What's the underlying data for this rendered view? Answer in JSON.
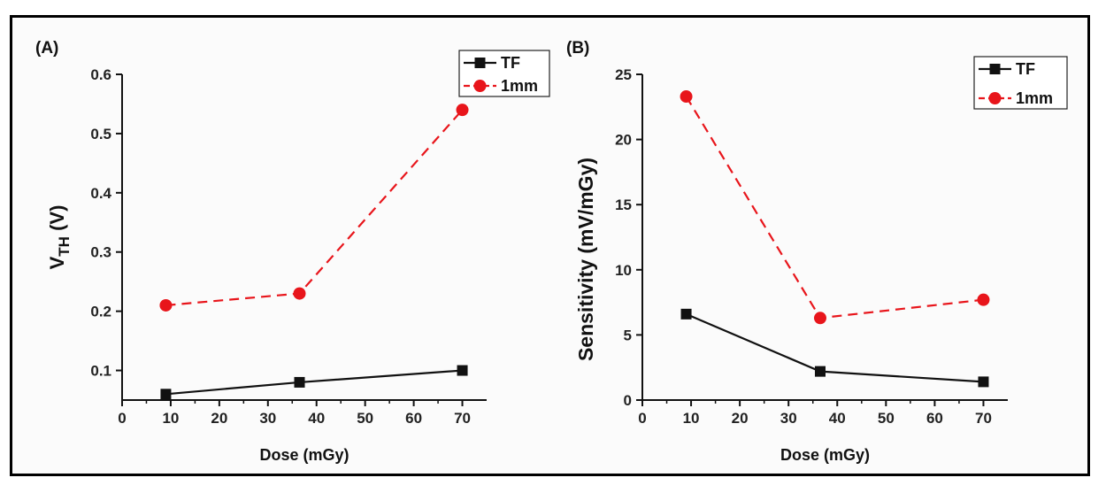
{
  "chart_data": [
    {
      "type": "line",
      "panel_label": "(A)",
      "xlabel": "Dose (mGy)",
      "ylabel_main": "V",
      "ylabel_sub": "TH",
      "ylabel_unit": " (V)",
      "xlim": [
        0,
        75
      ],
      "ylim": [
        0.05,
        0.6
      ],
      "xticks": [
        0,
        10,
        20,
        30,
        40,
        50,
        60,
        70
      ],
      "yticks": [
        0.1,
        0.2,
        0.3,
        0.4,
        0.5,
        0.6
      ],
      "ytick_labels": [
        "0.1",
        "0.2",
        "0.3",
        "0.4",
        "0.5",
        "0.6"
      ],
      "legend_position": "top-right",
      "series": [
        {
          "name": "TF",
          "color": "#111111",
          "marker": "square",
          "dash": "solid",
          "x": [
            9,
            36.5,
            70
          ],
          "y": [
            0.06,
            0.08,
            0.1
          ]
        },
        {
          "name": "1mm",
          "color": "#e8151b",
          "marker": "circle",
          "dash": "dashed",
          "x": [
            9,
            36.5,
            70
          ],
          "y": [
            0.21,
            0.23,
            0.54
          ]
        }
      ]
    },
    {
      "type": "line",
      "panel_label": "(B)",
      "xlabel": "Dose (mGy)",
      "ylabel": "Sensitivity (mV/mGy)",
      "xlim": [
        0,
        75
      ],
      "ylim": [
        0,
        25
      ],
      "xticks": [
        0,
        10,
        20,
        30,
        40,
        50,
        60,
        70
      ],
      "yticks": [
        0,
        5,
        10,
        15,
        20,
        25
      ],
      "ytick_labels": [
        "0",
        "5",
        "10",
        "15",
        "20",
        "25"
      ],
      "legend_position": "top-right",
      "series": [
        {
          "name": "TF",
          "color": "#111111",
          "marker": "square",
          "dash": "solid",
          "x": [
            9,
            36.5,
            70
          ],
          "y": [
            6.6,
            2.2,
            1.4
          ]
        },
        {
          "name": "1mm",
          "color": "#e8151b",
          "marker": "circle",
          "dash": "dashed",
          "x": [
            9,
            36.5,
            70
          ],
          "y": [
            23.3,
            6.3,
            7.7
          ]
        }
      ]
    }
  ]
}
